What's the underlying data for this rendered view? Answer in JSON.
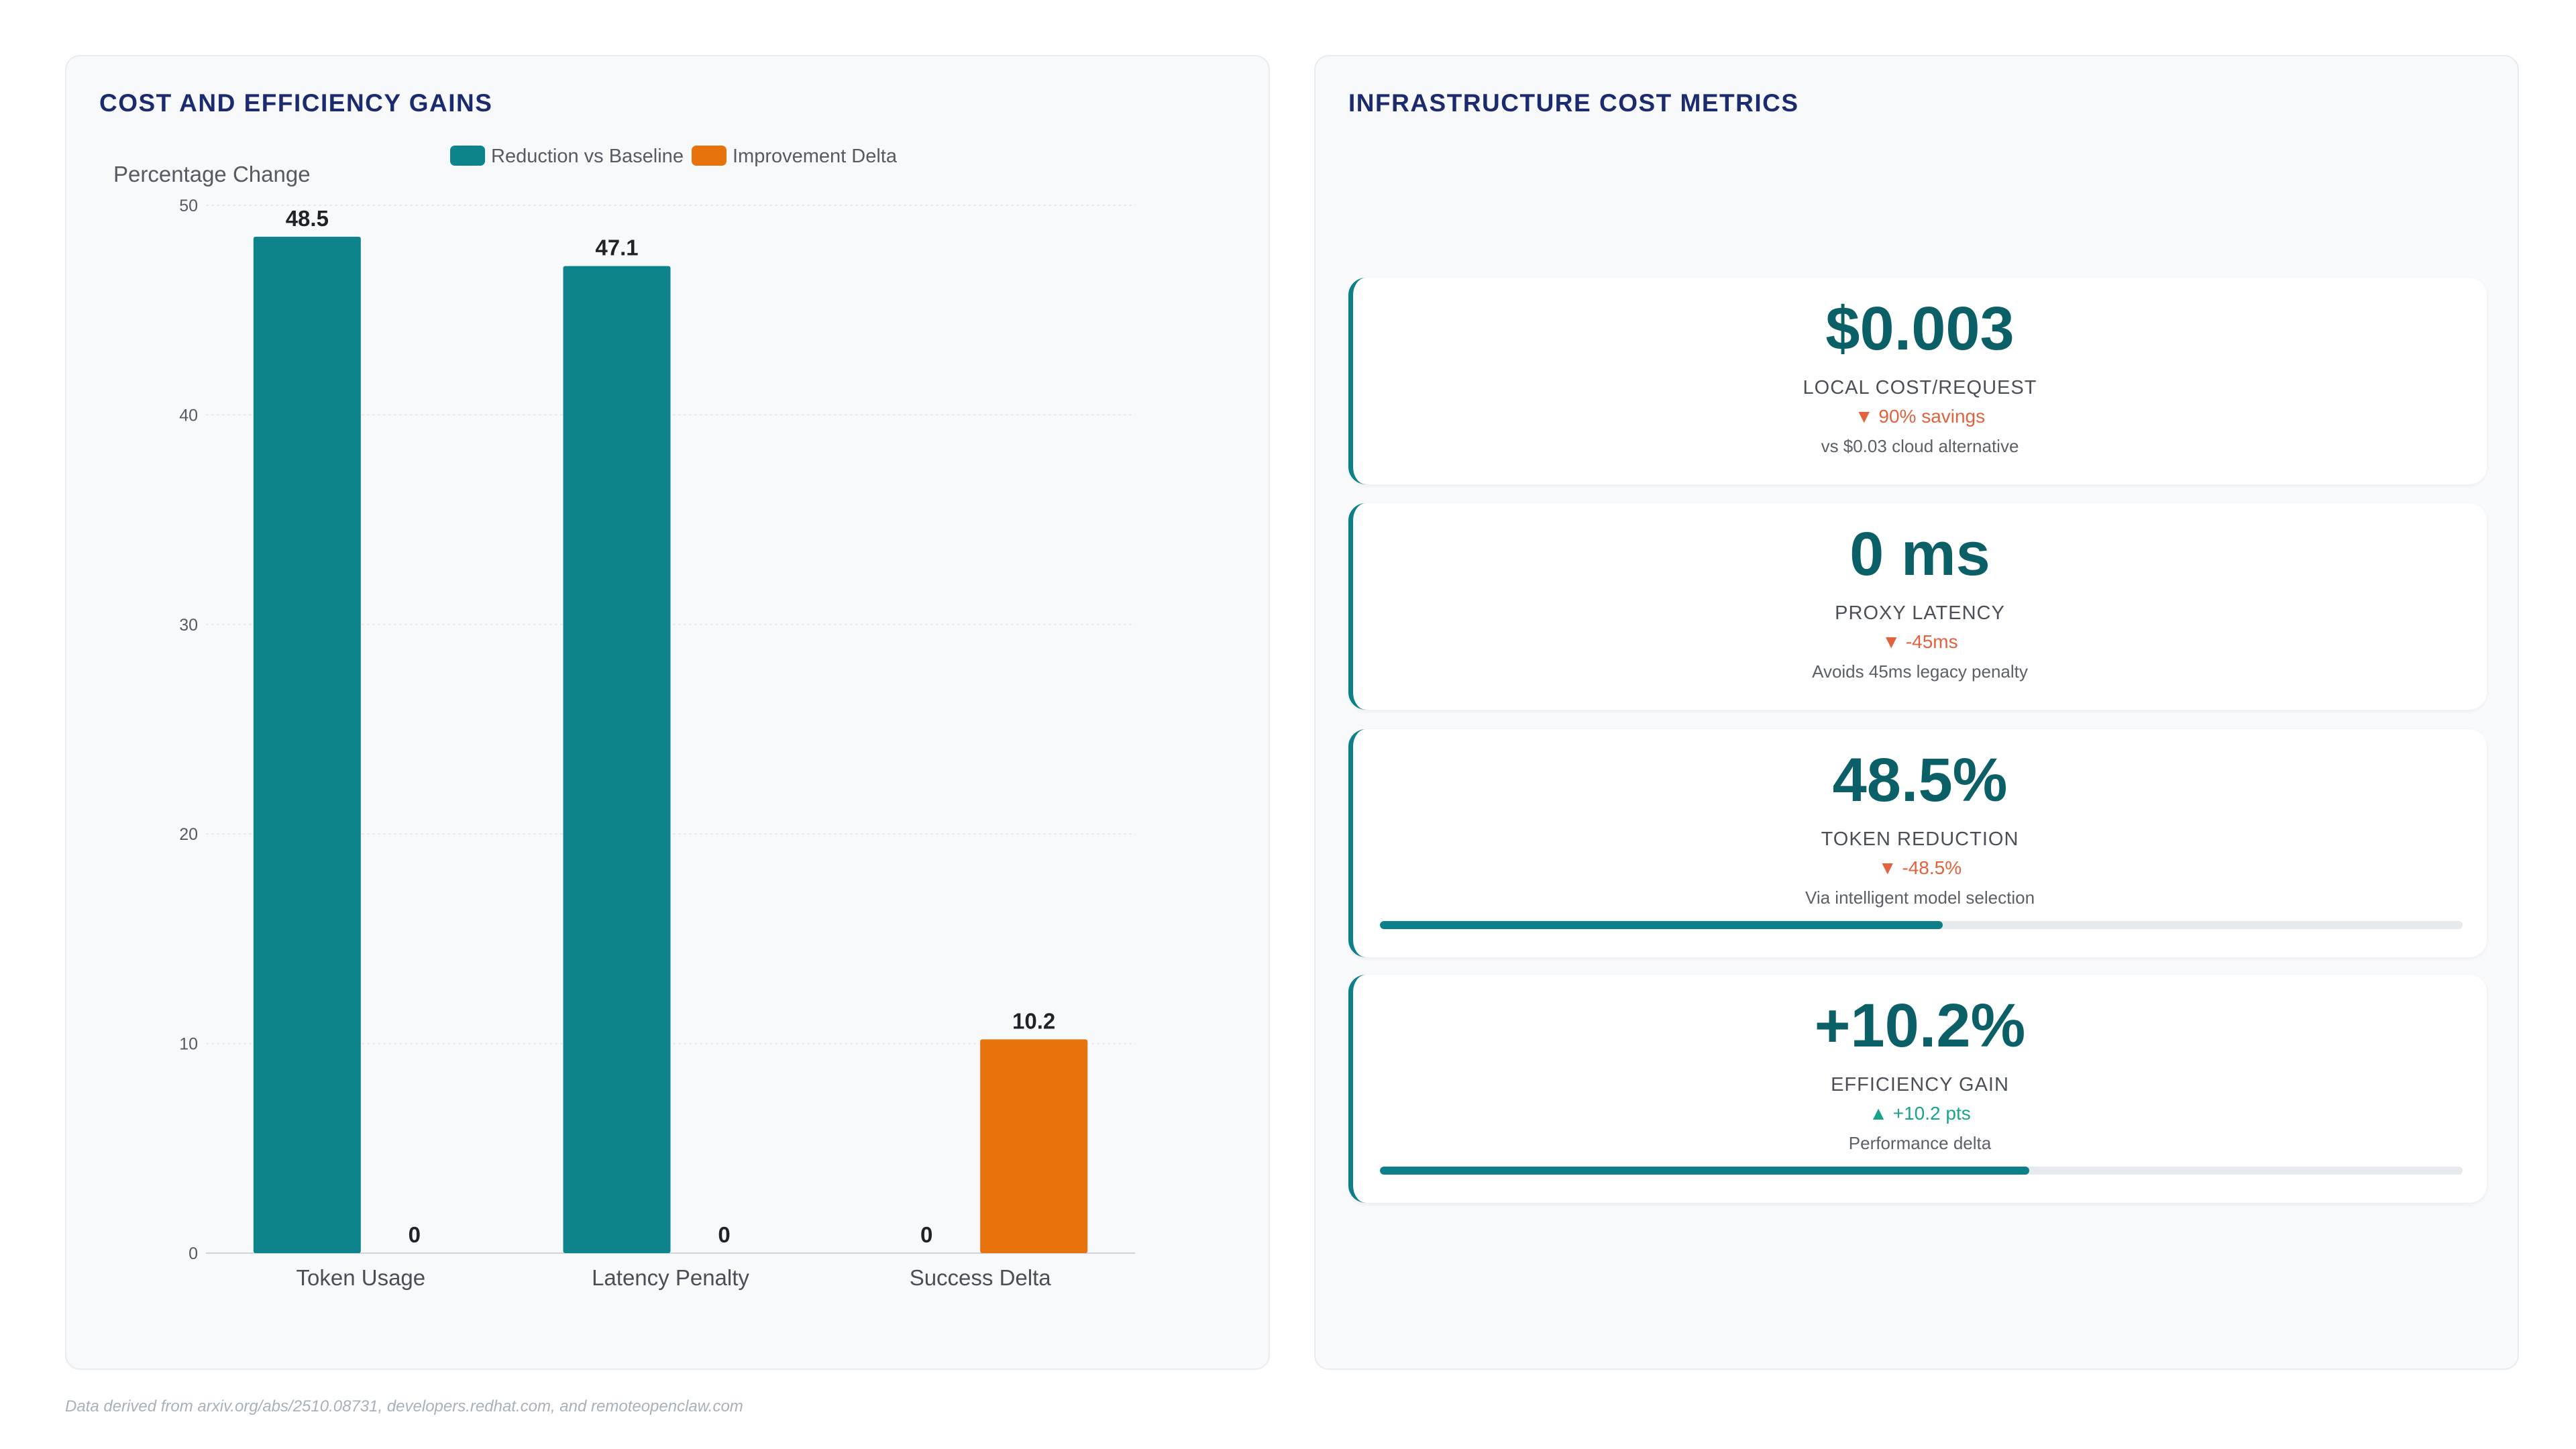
{
  "left_panel": {
    "title": "COST AND EFFICIENCY GAINS"
  },
  "right_panel": {
    "title": "INFRASTRUCTURE COST METRICS"
  },
  "chart_data": {
    "type": "bar",
    "title": "COST AND EFFICIENCY GAINS",
    "xlabel": "",
    "ylabel": "Percentage Change",
    "categories": [
      "Token Usage",
      "Latency Penalty",
      "Success Delta"
    ],
    "series": [
      {
        "name": "Reduction vs Baseline",
        "values": [
          48.5,
          47.1,
          0
        ],
        "color": "#0d838c"
      },
      {
        "name": "Improvement Delta",
        "values": [
          0,
          0,
          10.2
        ],
        "color": "#e8720c"
      }
    ],
    "ylim": [
      0,
      50
    ],
    "yticks": [
      0,
      10,
      20,
      30,
      40,
      50
    ],
    "grid": true,
    "legend": "top-center"
  },
  "metrics": [
    {
      "value": "$0.003",
      "label": "LOCAL COST/REQUEST",
      "delta": "▼ 90% savings",
      "delta_dir": "down",
      "note": "vs $0.03 cloud alternative"
    },
    {
      "value": "0 ms",
      "label": "PROXY LATENCY",
      "delta": "▼ -45ms",
      "delta_dir": "down",
      "note": "Avoids 45ms legacy penalty"
    },
    {
      "value": "48.5%",
      "label": "TOKEN REDUCTION",
      "delta": "▼ -48.5%",
      "delta_dir": "down",
      "note": "Via intelligent model selection",
      "progress": 0.52
    },
    {
      "value": "+10.2%",
      "label": "EFFICIENCY GAIN",
      "delta": "▲ +10.2 pts",
      "delta_dir": "up",
      "note": "Performance delta",
      "progress": 0.6
    }
  ],
  "footer": {
    "note": "Data derived from arxiv.org/abs/2510.08731, developers.redhat.com, and remoteopenclaw.com"
  },
  "colors": {
    "accent_teal": "#0d838c",
    "accent_orange": "#e8720c",
    "title_navy": "#1c2a6e",
    "delta_down": "#e2623e",
    "delta_up": "#1aa38a"
  }
}
